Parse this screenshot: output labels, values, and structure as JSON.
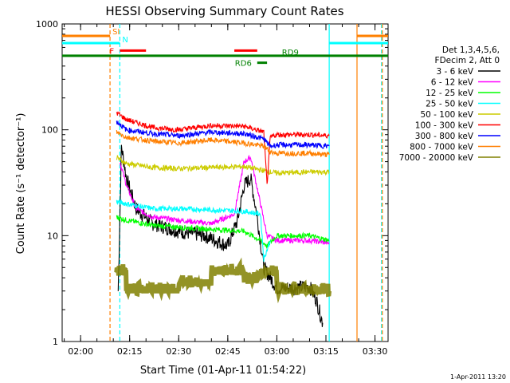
{
  "chart_data": {
    "type": "line",
    "title": "HESSI Observing Summary Count Rates",
    "xlabel": "Start Time (01-Apr-11 01:54:22)",
    "ylabel": "Count Rate (s⁻¹ detector⁻¹)",
    "y_scale": "log",
    "xlim": [
      "01:54:22",
      "03:34:00"
    ],
    "ylim": [
      1,
      1000
    ],
    "x_ticks": [
      "02:00",
      "02:15",
      "02:30",
      "02:45",
      "03:00",
      "03:15",
      "03:30"
    ],
    "y_ticks": [
      "1",
      "10",
      "100",
      "1000"
    ],
    "footer_date": "1-Apr-2011 13:20",
    "legend_header": [
      "Det 1,3,4,5,6,",
      "FDecim 2, Att 0"
    ],
    "legend_position": "right",
    "series": [
      {
        "name": "3 - 6 keV",
        "color": "#000000",
        "x": [
          "02:11:30",
          "02:12:30",
          "02:14:00",
          "02:17:00",
          "02:22:00",
          "02:30:00",
          "02:38:00",
          "02:45:00",
          "02:48:00",
          "02:50:00",
          "02:52:00",
          "02:54:00",
          "02:56:00",
          "03:00:00",
          "03:05:00",
          "03:10:00",
          "03:12:00",
          "03:14:00"
        ],
        "y": [
          3.0,
          70,
          35,
          18,
          13,
          11,
          10,
          8,
          14,
          30,
          35,
          15,
          5,
          3.2,
          3.2,
          3.3,
          2.5,
          1.5
        ]
      },
      {
        "name": "6 - 12 keV",
        "color": "#ff00ff",
        "x": [
          "02:12:00",
          "02:14:00",
          "02:17:00",
          "02:22:00",
          "02:30:00",
          "02:40:00",
          "02:47:00",
          "02:50:00",
          "02:52:00",
          "02:55:00",
          "02:57:00",
          "03:00:00",
          "03:10:00",
          "03:16:00"
        ],
        "y": [
          50,
          30,
          18,
          15,
          14,
          13,
          16,
          50,
          55,
          20,
          10,
          9,
          9,
          8.5
        ]
      },
      {
        "name": "12 - 25 keV",
        "color": "#00ff00",
        "x": [
          "02:11:00",
          "02:14:00",
          "02:22:00",
          "02:30:00",
          "02:40:00",
          "02:50:00",
          "02:55:00",
          "02:57:00",
          "03:00:00",
          "03:10:00",
          "03:16:00"
        ],
        "y": [
          15,
          14,
          12.5,
          12,
          11.5,
          11,
          9,
          8,
          10,
          10,
          9
        ]
      },
      {
        "name": "25 - 50 keV",
        "color": "#00ffff",
        "x": [
          "02:11:00",
          "02:14:00",
          "02:22:00",
          "02:30:00",
          "02:40:00",
          "02:50:00",
          "02:55:00",
          "02:56:00",
          "02:58:00"
        ],
        "y": [
          21,
          20,
          18,
          18,
          17.5,
          17,
          16,
          6,
          9
        ]
      },
      {
        "name": "50 - 100 keV",
        "color": "#cccc00",
        "x": [
          "02:11:00",
          "02:14:00",
          "02:22:00",
          "02:30:00",
          "02:40:00",
          "02:50:00",
          "02:58:00",
          "03:00:00",
          "03:10:00",
          "03:16:00"
        ],
        "y": [
          55,
          48,
          44,
          43,
          44,
          45,
          40,
          39,
          40,
          40
        ]
      },
      {
        "name": "100 - 300 keV",
        "color": "#ff0000",
        "x": [
          "02:11:00",
          "02:14:00",
          "02:22:00",
          "02:30:00",
          "02:40:00",
          "02:50:00",
          "02:56:00",
          "02:57:00",
          "02:58:00",
          "03:00:00",
          "03:10:00",
          "03:16:00"
        ],
        "y": [
          145,
          125,
          105,
          100,
          110,
          108,
          95,
          30,
          85,
          90,
          90,
          88
        ]
      },
      {
        "name": "300 - 800 keV",
        "color": "#0000ff",
        "x": [
          "02:11:00",
          "02:14:00",
          "02:22:00",
          "02:30:00",
          "02:40:00",
          "02:50:00",
          "02:56:00",
          "02:58:00",
          "03:00:00",
          "03:10:00",
          "03:16:00"
        ],
        "y": [
          120,
          100,
          92,
          88,
          95,
          92,
          82,
          70,
          72,
          72,
          70
        ]
      },
      {
        "name": "800 - 7000 keV",
        "color": "#ff7f00",
        "x": [
          "02:11:00",
          "02:14:00",
          "02:22:00",
          "02:30:00",
          "02:40:00",
          "02:50:00",
          "02:56:00",
          "02:58:00",
          "03:00:00",
          "03:10:00",
          "03:16:00"
        ],
        "y": [
          95,
          85,
          78,
          75,
          80,
          75,
          70,
          62,
          60,
          60,
          58
        ]
      },
      {
        "name": "7000 - 20000 keV",
        "color": "#808000",
        "x": [
          "02:11:00",
          "02:14:00",
          "02:22:00",
          "02:30:00",
          "02:40:00",
          "02:50:00",
          "02:55:00",
          "03:00:00",
          "03:10:00",
          "03:16:00"
        ],
        "y": [
          4.5,
          3.0,
          3.0,
          3.5,
          4.5,
          3.8,
          4.5,
          3.0,
          3.0,
          3.0
        ]
      }
    ],
    "flag_bars": [
      {
        "label": "SI",
        "color": "#ff7f00",
        "level": 770,
        "ranges": [
          [
            "01:54:22",
            "02:09:00"
          ],
          [
            "03:24:30",
            "03:34:00"
          ]
        ]
      },
      {
        "label": "N",
        "color": "#00ffff",
        "level": 660,
        "ranges": [
          [
            "01:54:22",
            "02:12:00"
          ],
          [
            "03:16:00",
            "03:34:00"
          ]
        ]
      },
      {
        "label": "F",
        "color": "#ff0000",
        "level": 560,
        "ranges": [
          [
            "02:12:00",
            "02:20:00"
          ],
          [
            "02:47:00",
            "02:54:00"
          ]
        ]
      },
      {
        "label": "RD9",
        "color": "#008000",
        "level": 500,
        "ranges": [
          [
            "01:54:22",
            "03:34:00"
          ]
        ]
      },
      {
        "label": "RD6",
        "color": "#008000",
        "level": 430,
        "ranges": [
          [
            "02:54:00",
            "02:57:00"
          ]
        ]
      }
    ],
    "vertical_lines": [
      {
        "x": "02:09:00",
        "color": "#ff7f00",
        "style": "dashed"
      },
      {
        "x": "02:12:00",
        "color": "#00ffff",
        "style": "dashed"
      },
      {
        "x": "03:16:00",
        "color": "#00ffff",
        "style": "solid"
      },
      {
        "x": "03:24:30",
        "color": "#ff7f00",
        "style": "solid"
      },
      {
        "x": "03:32:00",
        "color": "#00ffff",
        "style": "dashed"
      },
      {
        "x": "03:32:00",
        "color": "#ff7f00",
        "style": "dashed"
      }
    ]
  }
}
